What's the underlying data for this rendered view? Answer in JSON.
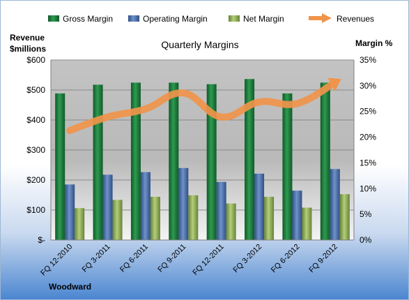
{
  "chart_data": {
    "type": "bar",
    "title": "Quarterly Margins",
    "left_axis_label_line1": "Revenue",
    "left_axis_label_line2": "$millions",
    "right_axis_label": "Margin %",
    "footer_label": "Woodward",
    "categories": [
      "FQ 12-2010",
      "FQ 3-2011",
      "FQ 6-2011",
      "FQ 9-2011",
      "FQ 12-2011",
      "FQ 3-2012",
      "FQ 6-2012",
      "FQ 9-2012"
    ],
    "left_ticks": [
      "$-",
      "$100",
      "$200",
      "$300",
      "$400",
      "$500",
      "$600"
    ],
    "right_ticks": [
      "0%",
      "5%",
      "10%",
      "15%",
      "20%",
      "25%",
      "30%",
      "35%"
    ],
    "ylim_left": [
      0,
      600
    ],
    "ylim_right": [
      0,
      35
    ],
    "series": [
      {
        "name": "Gross Margin",
        "axis": "right",
        "kind": "bar",
        "color": "#1e7a3c",
        "values": [
          28.5,
          30.2,
          30.6,
          30.6,
          30.3,
          31.3,
          28.5,
          30.6
        ]
      },
      {
        "name": "Operating Margin",
        "axis": "right",
        "kind": "bar",
        "color": "#4a6fab",
        "values": [
          10.8,
          12.7,
          13.2,
          14.0,
          11.3,
          12.9,
          9.6,
          13.8
        ]
      },
      {
        "name": "Net Margin",
        "axis": "right",
        "kind": "bar",
        "color": "#8fae4f",
        "values": [
          6.2,
          7.8,
          8.4,
          8.7,
          7.1,
          8.4,
          6.3,
          8.9
        ]
      },
      {
        "name": "Revenues",
        "axis": "left",
        "kind": "line",
        "color": "#f0944a",
        "values": [
          365,
          410,
          437,
          490,
          410,
          460,
          455,
          525
        ]
      }
    ],
    "grid": true,
    "legend_position": "top"
  }
}
